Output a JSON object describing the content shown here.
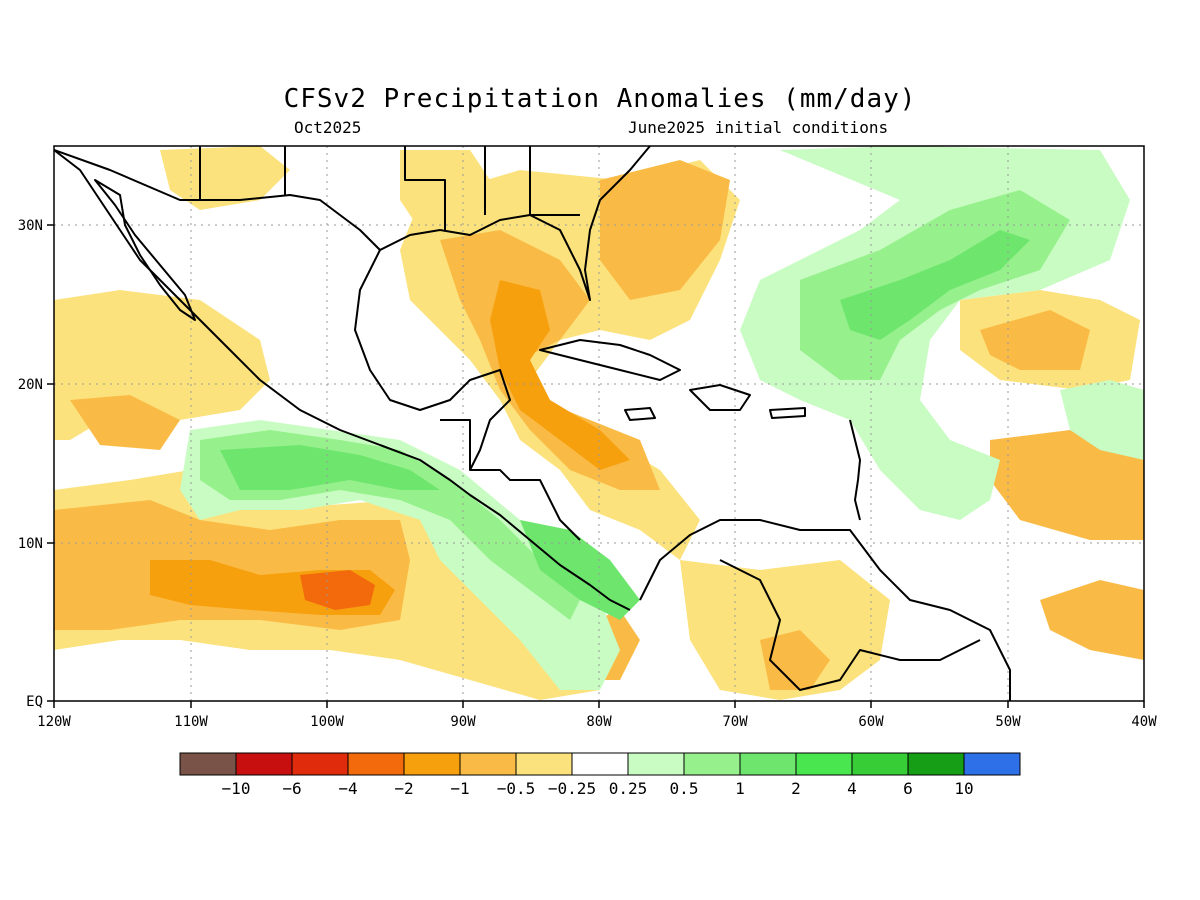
{
  "title": "CFSv2 Precipitation Anomalies (mm/day)",
  "subtitle_left": "Oct2025",
  "subtitle_right": "June2025 initial conditions",
  "map": {
    "lon_range": [
      -120,
      -40
    ],
    "lat_range": [
      0,
      35
    ],
    "x_ticks": [
      "120W",
      "110W",
      "100W",
      "90W",
      "80W",
      "70W",
      "60W",
      "50W",
      "40W"
    ],
    "y_ticks": [
      "EQ",
      "10N",
      "20N",
      "30N"
    ],
    "grid": true,
    "coastline_color": "#000000"
  },
  "colorbar": {
    "colors": [
      "#7a5348",
      "#c80f0f",
      "#e02c0c",
      "#f26a0c",
      "#f7a00e",
      "#fabb46",
      "#fce27c",
      "#ffffff",
      "#c8fcc2",
      "#96f08c",
      "#6ee66e",
      "#4ae64f",
      "#36cd36",
      "#169e16",
      "#2e70e8"
    ],
    "labels": [
      "-10",
      "-6",
      "-4",
      "-2",
      "-1",
      "-0.5",
      "-0.25",
      "0.25",
      "0.5",
      "1",
      "2",
      "4",
      "6",
      "10"
    ]
  }
}
